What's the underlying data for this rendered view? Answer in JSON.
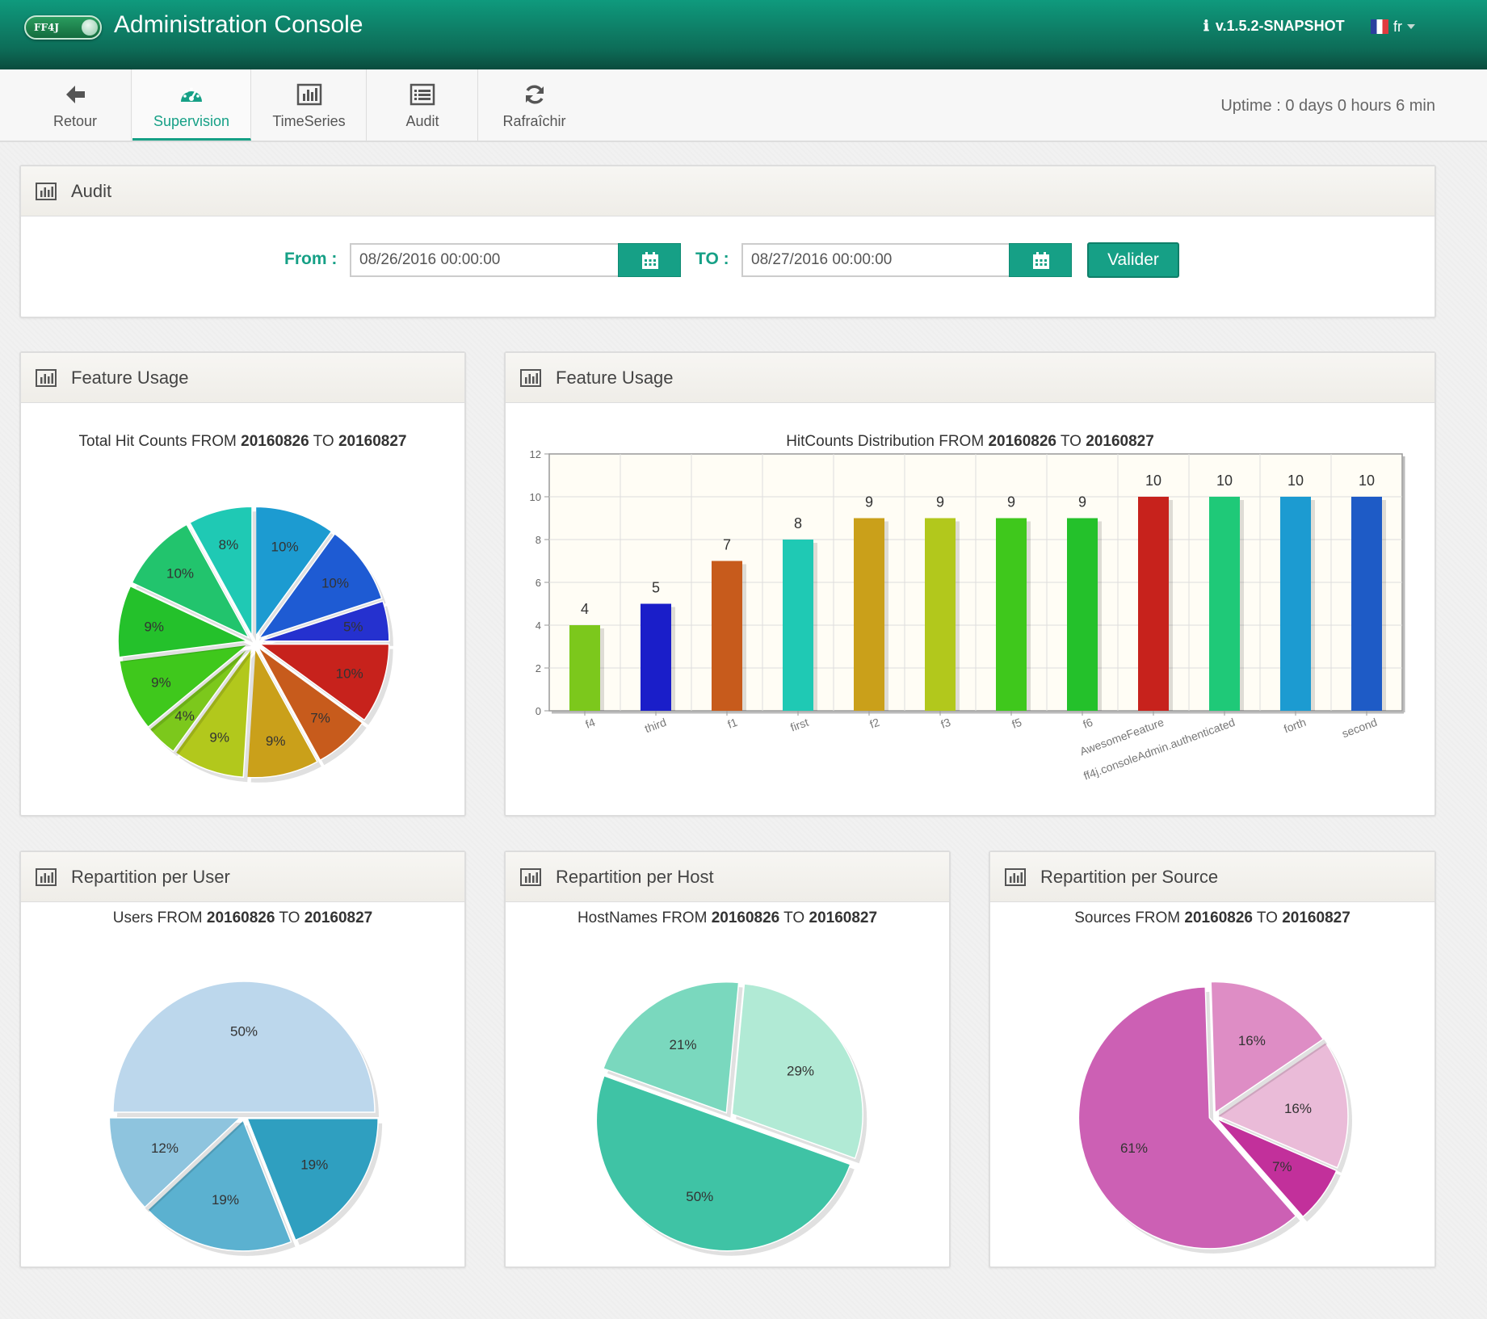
{
  "header": {
    "logo_text": "FF4J",
    "title": "Administration Console",
    "info_icon": "info-icon",
    "version": "v.1.5.2-SNAPSHOT",
    "language": "fr"
  },
  "toolbar": {
    "items": [
      {
        "label": "Retour",
        "icon": "arrow-left-icon"
      },
      {
        "label": "Supervision",
        "icon": "dashboard-icon",
        "active": true
      },
      {
        "label": "TimeSeries",
        "icon": "bar-chart-icon"
      },
      {
        "label": "Audit",
        "icon": "list-icon"
      },
      {
        "label": "Rafraîchir",
        "icon": "refresh-icon"
      }
    ],
    "uptime_label": "Uptime :",
    "uptime_value": "0 days 0 hours 6 min"
  },
  "audit": {
    "title": "Audit",
    "from_label": "From :",
    "from_value": "08/26/2016 00:00:00",
    "to_label": "TO :",
    "to_value": "08/27/2016 00:00:00",
    "submit_label": "Valider"
  },
  "range": {
    "from_word": "FROM",
    "to_word": "TO",
    "from": "20160826",
    "to": "20160827"
  },
  "panels": {
    "feature_pie": {
      "title": "Feature Usage",
      "chart_prefix": "Total Hit Counts"
    },
    "feature_bar": {
      "title": "Feature Usage",
      "chart_prefix": "HitCounts Distribution"
    },
    "user": {
      "title": "Repartition per User",
      "chart_prefix": "Users"
    },
    "host": {
      "title": "Repartition per Host",
      "chart_prefix": "HostNames"
    },
    "source": {
      "title": "Repartition per Source",
      "chart_prefix": "Sources"
    }
  },
  "colors": {
    "accent": "#16a086",
    "header_dark": "#0a4c3e"
  },
  "chart_data": [
    {
      "id": "feature_pie",
      "type": "pie",
      "title": "Total Hit Counts FROM 20160826 TO 20160827",
      "slices": [
        {
          "value": 10,
          "label": "10%",
          "color": "#1c9bd1"
        },
        {
          "value": 10,
          "label": "10%",
          "color": "#1e5bd3"
        },
        {
          "value": 5,
          "label": "5%",
          "color": "#2531cf"
        },
        {
          "value": 10,
          "label": "10%",
          "color": "#c7221c"
        },
        {
          "value": 7,
          "label": "7%",
          "color": "#c75b1c"
        },
        {
          "value": 9,
          "label": "9%",
          "color": "#caa01a"
        },
        {
          "value": 9,
          "label": "9%",
          "color": "#b2c81c"
        },
        {
          "value": 4,
          "label": "4%",
          "color": "#7cc81c"
        },
        {
          "value": 9,
          "label": "9%",
          "color": "#3fc81c"
        },
        {
          "value": 9,
          "label": "9%",
          "color": "#24c12b"
        },
        {
          "value": 10,
          "label": "10%",
          "color": "#22c46d"
        },
        {
          "value": 8,
          "label": "8%",
          "color": "#1fc9b4"
        }
      ]
    },
    {
      "id": "feature_bar",
      "type": "bar",
      "title": "HitCounts Distribution FROM 20160826 TO 20160827",
      "categories": [
        "f4",
        "third",
        "f1",
        "first",
        "f2",
        "f3",
        "f5",
        "f6",
        "AwesomeFeature",
        "ff4j.consoleAdmin.authenticated",
        "forth",
        "second"
      ],
      "values": [
        4,
        5,
        7,
        8,
        9,
        9,
        9,
        9,
        10,
        10,
        10,
        10
      ],
      "colors": [
        "#7cc81c",
        "#1a1ec9",
        "#c75b1c",
        "#1fc9b4",
        "#caa01a",
        "#b2c81c",
        "#3fc81c",
        "#24c12b",
        "#c7221c",
        "#1fc978",
        "#1c9bd1",
        "#1e5bc6"
      ],
      "ylim": [
        0,
        12
      ],
      "yticks": [
        0,
        2,
        4,
        6,
        8,
        10,
        12
      ],
      "grid": true
    },
    {
      "id": "user",
      "type": "pie",
      "title": "Users FROM 20160826 TO 20160827",
      "slices": [
        {
          "value": 50,
          "label": "50%",
          "color": "#bcd7ec"
        },
        {
          "value": 19,
          "label": "19%",
          "color": "#2f9fc0"
        },
        {
          "value": 19,
          "label": "19%",
          "color": "#5bb1d0"
        },
        {
          "value": 12,
          "label": "12%",
          "color": "#8ec4de"
        }
      ]
    },
    {
      "id": "host",
      "type": "pie",
      "title": "HostNames FROM 20160826 TO 20160827",
      "slices": [
        {
          "value": 29,
          "label": "29%",
          "color": "#b1ead5"
        },
        {
          "value": 50,
          "label": "50%",
          "color": "#3fc3a5"
        },
        {
          "value": 21,
          "label": "21%",
          "color": "#7ad8be"
        }
      ]
    },
    {
      "id": "source",
      "type": "pie",
      "title": "Sources FROM 20160826 TO 20160827",
      "slices": [
        {
          "value": 16,
          "label": "16%",
          "color": "#eabbd8"
        },
        {
          "value": 7,
          "label": "7%",
          "color": "#c2309b"
        },
        {
          "value": 61,
          "label": "61%",
          "color": "#cc60b4"
        },
        {
          "value": 16,
          "label": "16%",
          "color": "#de8dc5"
        }
      ]
    }
  ]
}
